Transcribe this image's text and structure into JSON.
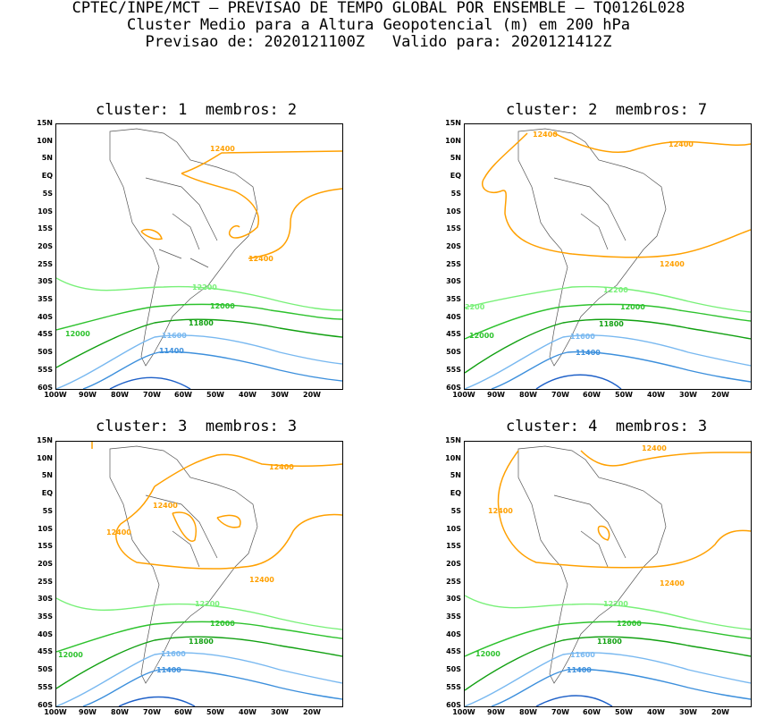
{
  "header": {
    "line1": "CPTEC/INPE/MCT — PREVISAO DE TEMPO GLOBAL POR ENSEMBLE — TQ0126L028",
    "line2": "Cluster Medio para a Altura Geopotencial (m) em 200 hPa",
    "line3": "Previsao de: 2020121100Z   Valido para: 2020121412Z"
  },
  "lat_labels": [
    "15N",
    "10N",
    "5N",
    "EQ",
    "5S",
    "10S",
    "15S",
    "20S",
    "25S",
    "30S",
    "35S",
    "40S",
    "45S",
    "50S",
    "55S",
    "60S"
  ],
  "lon_labels": [
    "100W",
    "90W",
    "80W",
    "70W",
    "60W",
    "50W",
    "40W",
    "30W",
    "20W"
  ],
  "colors": {
    "c12400": "#ffa000",
    "c12200": "#78f078",
    "c12000": "#2dc22d",
    "c11800": "#11a011",
    "c11600": "#78b8f0",
    "c11400": "#3c8fdc",
    "c11200": "#1e60c8",
    "land": "#555555"
  },
  "panels": [
    {
      "title": "cluster: 1  membros: 2",
      "labels": {
        "a": "12400",
        "b": "12400",
        "c": "12200",
        "d": "12000",
        "e": "12000",
        "f": "11800",
        "g": "11600",
        "h": "11400"
      }
    },
    {
      "title": "cluster: 2  membros: 7",
      "labels": {
        "a": "12400",
        "b": "12400",
        "c": "12400",
        "d": "12200",
        "e": "12000",
        "f": "2200",
        "g": "12000",
        "h": "11800",
        "i": "11600",
        "j": "11400"
      }
    },
    {
      "title": "cluster: 3  membros: 3",
      "labels": {
        "a": "12400",
        "b": "12400",
        "c": "12400",
        "d": "12400",
        "e": "12200",
        "f": "12000",
        "g": "12000",
        "h": "11800",
        "i": "11600",
        "j": "11400"
      }
    },
    {
      "title": "cluster: 4  membros: 3",
      "labels": {
        "a": "12400",
        "b": "12400",
        "c": "12400",
        "d": "12200",
        "e": "12000",
        "f": "12000",
        "g": "11800",
        "h": "11600",
        "i": "11400"
      }
    }
  ]
}
